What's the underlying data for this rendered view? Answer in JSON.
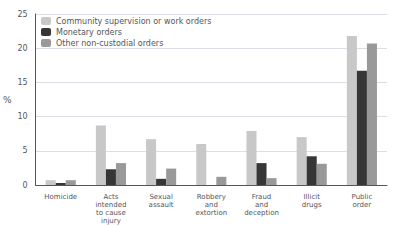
{
  "chart_data": {
    "type": "bar",
    "ylabel": "%",
    "categories": [
      "Homicide",
      "Acts\nintended\nto cause\ninjury",
      "Sexual\nassault",
      "Robbery\nand\nextortion",
      "Fraud\nand\ndeception",
      "Illicit\ndrugs",
      "Public\norder"
    ],
    "series": [
      {
        "name": "Community supervision or work orders",
        "color": "#c8c8c8",
        "values": [
          0.7,
          8.7,
          6.7,
          6.0,
          7.9,
          7.0,
          21.8
        ]
      },
      {
        "name": "Monetary orders",
        "color": "#363636",
        "values": [
          0.3,
          2.3,
          0.9,
          0.0,
          3.2,
          4.2,
          16.7
        ]
      },
      {
        "name": "Other non-custodial orders",
        "color": "#999999",
        "values": [
          0.7,
          3.2,
          2.4,
          1.2,
          1.0,
          3.1,
          20.7
        ]
      }
    ],
    "ylim": [
      0,
      25
    ],
    "yticks": [
      0,
      5,
      10,
      15,
      20,
      25
    ],
    "grid": true,
    "legend": "upper left"
  }
}
